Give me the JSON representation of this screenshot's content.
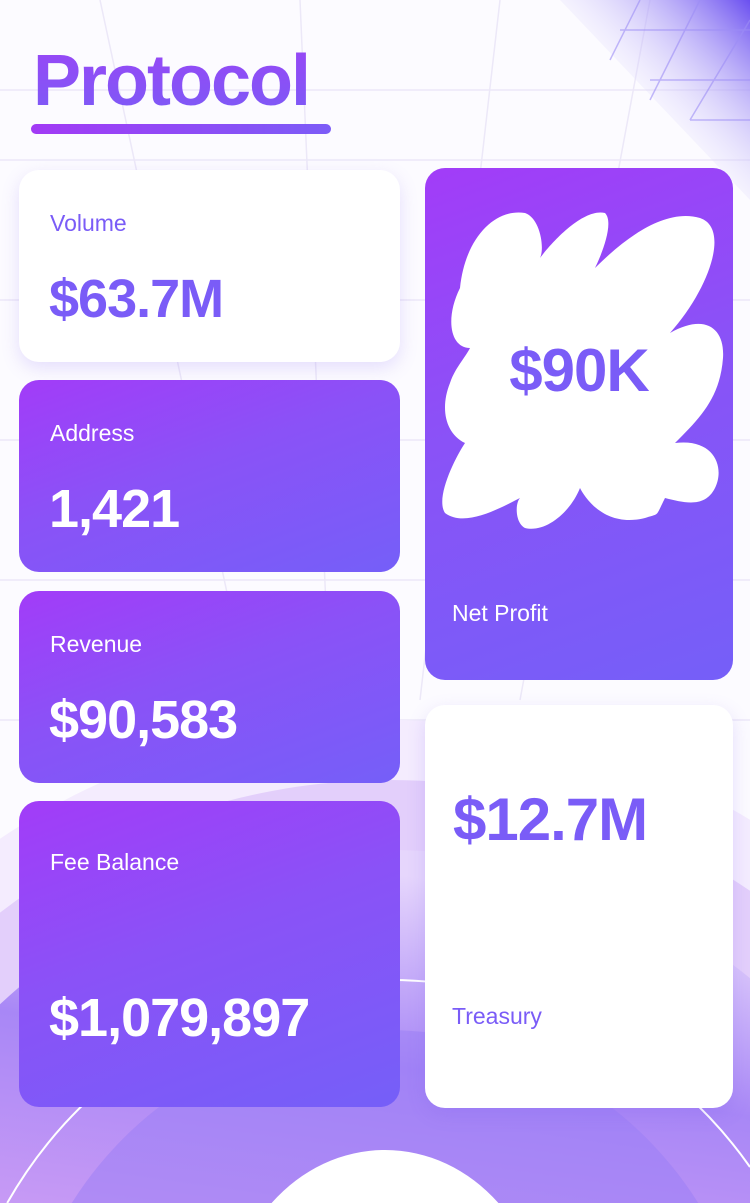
{
  "header": {
    "title": "Protocol"
  },
  "colors": {
    "accent": "#7a5cf7",
    "gradient_start": "#a23cf8",
    "gradient_end": "#755ff8"
  },
  "cards": {
    "volume": {
      "label": "Volume",
      "value": "$63.7M"
    },
    "address": {
      "label": "Address",
      "value": "1,421"
    },
    "revenue": {
      "label": "Revenue",
      "value": "$90,583"
    },
    "fee_balance": {
      "label": "Fee Balance",
      "value": "$1,079,897"
    },
    "net_profit": {
      "label": "Net Profit",
      "value": "$90K"
    },
    "treasury": {
      "label": "Treasury",
      "value": "$12.7M"
    }
  }
}
